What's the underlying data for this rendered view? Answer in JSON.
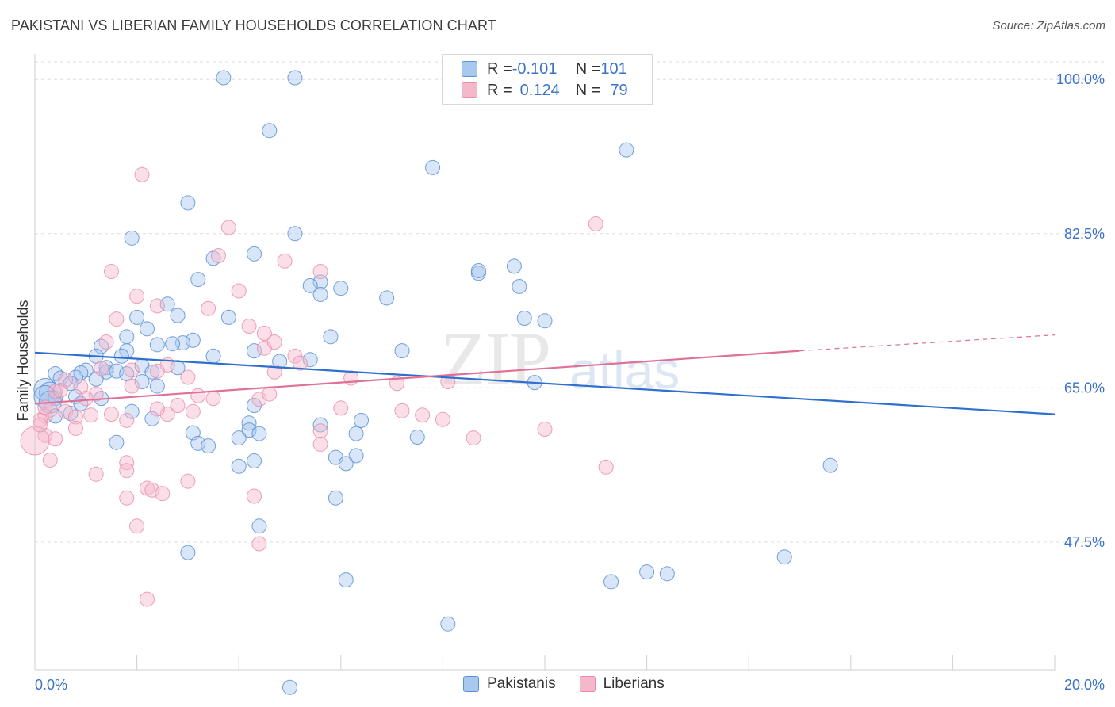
{
  "header": {
    "title": "PAKISTANI VS LIBERIAN FAMILY HOUSEHOLDS CORRELATION CHART",
    "source": "Source: ZipAtlas.com"
  },
  "legend": {
    "series": [
      {
        "r_label": "R = ",
        "r_value": "-0.101",
        "n_label": "N = ",
        "n_value": "101"
      },
      {
        "r_label": "R = ",
        "r_value": "0.124",
        "n_label": "N = ",
        "n_value": "79"
      }
    ],
    "bottom": [
      "Pakistanis",
      "Liberians"
    ]
  },
  "colors": {
    "pakistani_fill": "#a9c8f0",
    "pakistani_stroke": "#5b8fd6",
    "pakistani_line": "#2f6fcf",
    "liberian_fill": "#f5b8cb",
    "liberian_stroke": "#e88aa8",
    "liberian_line": "#e07098",
    "tick_label": "#3a72c8",
    "grid": "#dddddd"
  },
  "watermark": {
    "zip": "ZIP",
    "atlas": "atlas"
  },
  "chart_data": {
    "type": "scatter",
    "title": "PAKISTANI VS LIBERIAN FAMILY HOUSEHOLDS CORRELATION CHART",
    "xlabel": "",
    "ylabel": "Family Households",
    "xlim": [
      0,
      20
    ],
    "ylim": [
      33,
      102
    ],
    "x_tick_labels": [
      "0.0%",
      "20.0%"
    ],
    "y_ticks": [
      47.5,
      65.0,
      82.5,
      100.0
    ],
    "y_tick_labels": [
      "47.5%",
      "65.0%",
      "82.5%",
      "100.0%"
    ],
    "grid": true,
    "legend_placement": "top-center",
    "series": [
      {
        "name": "Pakistanis",
        "r": -0.101,
        "n": 101,
        "trend": {
          "x": [
            0,
            20
          ],
          "y": [
            69.0,
            62.0
          ]
        },
        "points": [
          [
            3.7,
            100.2
          ],
          [
            5.1,
            100.2
          ],
          [
            8.2,
            100.2
          ],
          [
            4.6,
            94.2
          ],
          [
            7.8,
            90.0
          ],
          [
            11.6,
            92.0
          ],
          [
            3.0,
            86.0
          ],
          [
            1.9,
            82.0
          ],
          [
            5.1,
            82.5
          ],
          [
            4.3,
            80.2
          ],
          [
            3.5,
            79.7
          ],
          [
            8.7,
            78.0
          ],
          [
            8.7,
            78.3
          ],
          [
            9.4,
            78.8
          ],
          [
            3.2,
            77.3
          ],
          [
            5.6,
            77.0
          ],
          [
            5.6,
            75.6
          ],
          [
            6.0,
            76.3
          ],
          [
            5.4,
            76.6
          ],
          [
            9.5,
            76.5
          ],
          [
            6.9,
            75.2
          ],
          [
            2.6,
            74.5
          ],
          [
            2.8,
            73.2
          ],
          [
            2.0,
            73.0
          ],
          [
            3.8,
            73.0
          ],
          [
            2.2,
            71.7
          ],
          [
            1.8,
            70.8
          ],
          [
            3.1,
            70.4
          ],
          [
            2.9,
            70.1
          ],
          [
            2.7,
            70.0
          ],
          [
            2.4,
            69.9
          ],
          [
            1.3,
            69.7
          ],
          [
            5.8,
            70.8
          ],
          [
            7.2,
            69.2
          ],
          [
            4.3,
            69.2
          ],
          [
            3.5,
            68.6
          ],
          [
            1.8,
            69.2
          ],
          [
            1.7,
            68.6
          ],
          [
            1.2,
            68.6
          ],
          [
            5.4,
            68.2
          ],
          [
            4.8,
            68.0
          ],
          [
            1.4,
            67.3
          ],
          [
            2.1,
            67.5
          ],
          [
            2.8,
            67.3
          ],
          [
            1.0,
            67.0
          ],
          [
            1.4,
            66.8
          ],
          [
            1.6,
            66.9
          ],
          [
            1.8,
            66.6
          ],
          [
            2.3,
            66.8
          ],
          [
            0.4,
            66.6
          ],
          [
            0.9,
            66.7
          ],
          [
            0.5,
            66.1
          ],
          [
            0.8,
            66.2
          ],
          [
            1.2,
            66.0
          ],
          [
            0.7,
            65.5
          ],
          [
            2.1,
            65.7
          ],
          [
            2.4,
            65.2
          ],
          [
            9.8,
            65.6
          ],
          [
            0.2,
            64.8
          ],
          [
            0.3,
            64.4
          ],
          [
            0.2,
            64.0
          ],
          [
            0.4,
            63.8
          ],
          [
            1.3,
            63.8
          ],
          [
            0.3,
            63.4
          ],
          [
            0.8,
            64.0
          ],
          [
            0.9,
            63.2
          ],
          [
            4.3,
            63.0
          ],
          [
            1.9,
            62.3
          ],
          [
            0.7,
            62.1
          ],
          [
            0.4,
            61.8
          ],
          [
            2.3,
            61.5
          ],
          [
            4.2,
            61.0
          ],
          [
            4.2,
            60.2
          ],
          [
            4.4,
            59.8
          ],
          [
            4.0,
            59.3
          ],
          [
            5.6,
            60.8
          ],
          [
            6.3,
            59.8
          ],
          [
            3.1,
            59.9
          ],
          [
            3.2,
            58.7
          ],
          [
            3.4,
            58.4
          ],
          [
            1.6,
            58.8
          ],
          [
            6.4,
            61.3
          ],
          [
            7.5,
            59.4
          ],
          [
            4.3,
            56.7
          ],
          [
            4.0,
            56.1
          ],
          [
            6.3,
            57.3
          ],
          [
            5.9,
            57.1
          ],
          [
            5.9,
            52.5
          ],
          [
            6.1,
            56.4
          ],
          [
            4.4,
            49.3
          ],
          [
            3.0,
            46.3
          ],
          [
            6.1,
            43.2
          ],
          [
            11.3,
            43.0
          ],
          [
            12.0,
            44.1
          ],
          [
            12.4,
            43.9
          ],
          [
            14.7,
            45.8
          ],
          [
            15.6,
            56.2
          ],
          [
            8.1,
            38.2
          ],
          [
            5.0,
            31.0
          ],
          [
            10.0,
            72.6
          ],
          [
            9.6,
            72.9
          ]
        ]
      },
      {
        "name": "Liberians",
        "r": 0.124,
        "n": 79,
        "trend": {
          "x": [
            0,
            15
          ],
          "y": [
            63.2,
            69.2
          ],
          "dashed_to": {
            "x": 20,
            "y": 71.0
          }
        },
        "points": [
          [
            2.1,
            89.2
          ],
          [
            11.0,
            83.6
          ],
          [
            3.8,
            83.2
          ],
          [
            3.6,
            80.0
          ],
          [
            4.9,
            79.4
          ],
          [
            5.6,
            78.2
          ],
          [
            1.5,
            78.2
          ],
          [
            4.0,
            76.0
          ],
          [
            2.0,
            75.4
          ],
          [
            2.4,
            74.3
          ],
          [
            3.4,
            74.0
          ],
          [
            1.6,
            72.8
          ],
          [
            4.2,
            72.0
          ],
          [
            4.5,
            71.2
          ],
          [
            4.5,
            69.5
          ],
          [
            1.4,
            70.2
          ],
          [
            4.7,
            70.2
          ],
          [
            5.1,
            68.6
          ],
          [
            5.2,
            67.8
          ],
          [
            2.6,
            67.6
          ],
          [
            1.3,
            67.2
          ],
          [
            1.9,
            67.0
          ],
          [
            2.4,
            66.9
          ],
          [
            3.0,
            66.2
          ],
          [
            4.7,
            66.8
          ],
          [
            6.2,
            66.1
          ],
          [
            7.1,
            65.5
          ],
          [
            8.1,
            65.7
          ],
          [
            0.6,
            65.9
          ],
          [
            0.9,
            65.1
          ],
          [
            0.4,
            64.6
          ],
          [
            1.2,
            64.3
          ],
          [
            3.2,
            64.1
          ],
          [
            2.8,
            63.0
          ],
          [
            4.4,
            63.7
          ],
          [
            0.3,
            62.5
          ],
          [
            0.6,
            62.3
          ],
          [
            0.8,
            61.7
          ],
          [
            1.1,
            61.9
          ],
          [
            1.5,
            62.0
          ],
          [
            1.8,
            61.3
          ],
          [
            0.2,
            61.8
          ],
          [
            0.1,
            61.3
          ],
          [
            0.2,
            59.6
          ],
          [
            2.6,
            62.0
          ],
          [
            7.2,
            62.4
          ],
          [
            7.6,
            61.9
          ],
          [
            8.0,
            61.4
          ],
          [
            10.0,
            60.3
          ],
          [
            5.6,
            60.1
          ],
          [
            5.6,
            58.6
          ],
          [
            8.6,
            59.3
          ],
          [
            0.3,
            56.8
          ],
          [
            1.8,
            56.5
          ],
          [
            1.8,
            55.6
          ],
          [
            2.2,
            53.6
          ],
          [
            2.3,
            53.4
          ],
          [
            2.5,
            53.0
          ],
          [
            3.0,
            54.4
          ],
          [
            1.2,
            55.2
          ],
          [
            1.8,
            52.5
          ],
          [
            4.3,
            52.7
          ],
          [
            2.0,
            49.3
          ],
          [
            4.4,
            47.3
          ],
          [
            2.2,
            41.0
          ],
          [
            11.2,
            56.0
          ],
          [
            0.0,
            59.0
          ],
          [
            0.4,
            59.2
          ],
          [
            0.8,
            60.4
          ],
          [
            1.0,
            63.8
          ],
          [
            1.9,
            65.2
          ],
          [
            3.1,
            62.3
          ],
          [
            3.5,
            63.8
          ],
          [
            4.6,
            64.3
          ],
          [
            6.0,
            62.7
          ],
          [
            0.5,
            64.7
          ],
          [
            0.2,
            62.8
          ],
          [
            0.1,
            60.8
          ],
          [
            2.4,
            62.6
          ]
        ]
      }
    ]
  }
}
